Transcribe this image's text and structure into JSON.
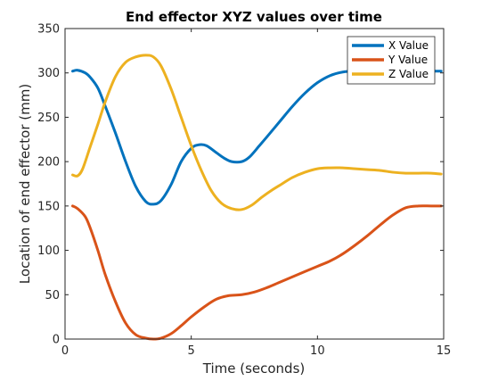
{
  "chart_data": {
    "type": "line",
    "title": "End effector XYZ values over time",
    "xlabel": "Time (seconds)",
    "ylabel": "Location of end effector (mm)",
    "xlim": [
      0,
      15
    ],
    "ylim": [
      0,
      350
    ],
    "x_ticks": [
      "0",
      "5",
      "10",
      "15"
    ],
    "y_ticks": [
      "0",
      "50",
      "100",
      "150",
      "200",
      "250",
      "300",
      "350"
    ],
    "grid": false,
    "legend_position": "top-right",
    "series": [
      {
        "name": "X Value",
        "color": "#0072BD",
        "x": [
          0.3,
          0.5,
          0.8,
          1.0,
          1.3,
          1.6,
          2.0,
          2.4,
          2.8,
          3.2,
          3.5,
          3.8,
          4.2,
          4.6,
          5.0,
          5.3,
          5.6,
          6.0,
          6.3,
          6.6,
          7.0,
          7.3,
          7.7,
          8.0,
          8.5,
          9.0,
          9.5,
          10.0,
          10.5,
          11.0,
          11.5,
          12.0,
          12.5,
          13.0,
          13.5,
          14.0,
          14.5,
          14.9
        ],
        "values": [
          302,
          303,
          300,
          295,
          283,
          262,
          232,
          200,
          172,
          155,
          152,
          156,
          174,
          200,
          215,
          219,
          218,
          210,
          204,
          200,
          200,
          205,
          218,
          228,
          245,
          262,
          277,
          289,
          297,
          301,
          302,
          302,
          302,
          301,
          301,
          302,
          302,
          302
        ]
      },
      {
        "name": "Y Value",
        "color": "#D95319",
        "x": [
          0.3,
          0.5,
          0.8,
          1.0,
          1.3,
          1.6,
          2.0,
          2.4,
          2.8,
          3.2,
          3.5,
          3.8,
          4.2,
          4.6,
          5.0,
          5.5,
          6.0,
          6.5,
          7.0,
          7.5,
          8.0,
          8.5,
          9.0,
          9.5,
          10.0,
          10.5,
          11.0,
          11.5,
          12.0,
          12.5,
          13.0,
          13.5,
          14.0,
          14.5,
          14.9
        ],
        "values": [
          150,
          147,
          138,
          125,
          100,
          72,
          42,
          18,
          5,
          1,
          0,
          1,
          6,
          15,
          25,
          36,
          45,
          49,
          50,
          53,
          58,
          64,
          70,
          76,
          82,
          88,
          96,
          106,
          117,
          129,
          140,
          148,
          150,
          150,
          150
        ]
      },
      {
        "name": "Z Value",
        "color": "#EDB120",
        "x": [
          0.3,
          0.5,
          0.7,
          1.0,
          1.3,
          1.6,
          2.0,
          2.4,
          2.8,
          3.2,
          3.5,
          3.8,
          4.2,
          4.6,
          5.0,
          5.4,
          5.8,
          6.2,
          6.6,
          7.0,
          7.4,
          7.8,
          8.2,
          8.6,
          9.0,
          9.5,
          10.0,
          10.5,
          11.0,
          11.5,
          12.0,
          12.5,
          13.0,
          13.5,
          14.0,
          14.5,
          14.9
        ],
        "values": [
          185,
          184,
          192,
          217,
          242,
          268,
          296,
          312,
          318,
          320,
          318,
          308,
          282,
          250,
          218,
          190,
          167,
          153,
          147,
          146,
          151,
          160,
          168,
          175,
          182,
          188,
          192,
          193,
          193,
          192,
          191,
          190,
          188,
          187,
          187,
          187,
          186
        ]
      }
    ]
  }
}
